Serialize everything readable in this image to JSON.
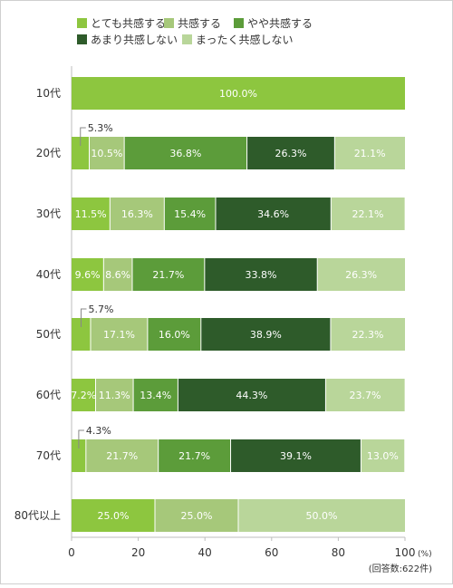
{
  "chart_data": {
    "type": "bar",
    "orientation": "horizontal",
    "stacked": true,
    "categories": [
      "10代",
      "20代",
      "30代",
      "40代",
      "50代",
      "60代",
      "70代",
      "80代以上"
    ],
    "series": [
      {
        "name": "とても共感する",
        "color": "#8dc63f",
        "values": [
          100.0,
          5.3,
          11.5,
          9.6,
          5.7,
          7.2,
          4.3,
          25.0
        ]
      },
      {
        "name": "共感する",
        "color": "#a6c87a",
        "values": [
          0,
          10.5,
          16.3,
          8.6,
          17.1,
          11.3,
          21.7,
          25.0
        ]
      },
      {
        "name": "やや共感する",
        "color": "#5c9c3a",
        "values": [
          0,
          36.8,
          15.4,
          21.7,
          16.0,
          13.4,
          21.7,
          0
        ]
      },
      {
        "name": "あまり共感しない",
        "color": "#2e5b2a",
        "values": [
          0,
          26.3,
          34.6,
          33.8,
          38.9,
          44.3,
          39.1,
          0
        ]
      },
      {
        "name": "まったく共感しない",
        "color": "#b9d69a",
        "values": [
          0,
          21.1,
          22.1,
          26.3,
          22.3,
          23.7,
          13.0,
          50.0
        ]
      }
    ],
    "data_labels": [
      [
        "100.0%",
        "",
        "",
        "",
        ""
      ],
      [
        "5.3%",
        "10.5%",
        "36.8%",
        "26.3%",
        "21.1%"
      ],
      [
        "11.5%",
        "16.3%",
        "15.4%",
        "34.6%",
        "22.1%"
      ],
      [
        "9.6%",
        "8.6%",
        "21.7%",
        "33.8%",
        "26.3%"
      ],
      [
        "5.7%",
        "17.1%",
        "16.0%",
        "38.9%",
        "22.3%"
      ],
      [
        "7.2%",
        "11.3%",
        "13.4%",
        "44.3%",
        "23.7%"
      ],
      [
        "4.3%",
        "21.7%",
        "21.7%",
        "39.1%",
        "13.0%"
      ],
      [
        "25.0%",
        "25.0%",
        "",
        "",
        "50.0%"
      ]
    ],
    "x_ticks": [
      "0",
      "20",
      "40",
      "60",
      "80",
      "100"
    ],
    "x_unit": "(%)",
    "xlim": [
      0,
      100
    ],
    "note": "(回答数:622件)",
    "legend_position": "top-left",
    "grid": false
  }
}
